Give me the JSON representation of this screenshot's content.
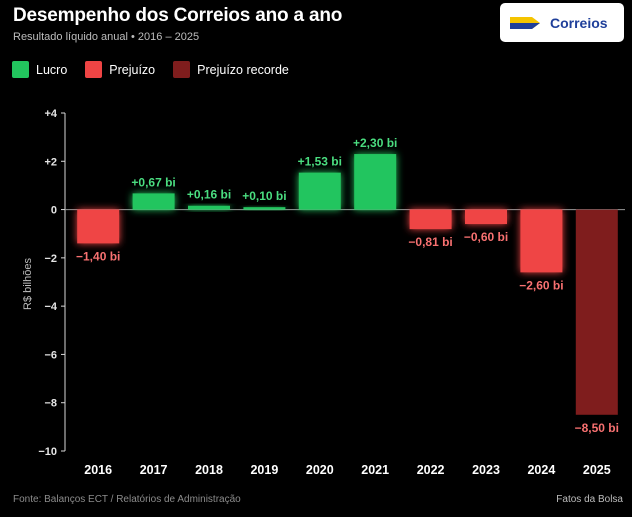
{
  "header": {
    "title": "Desempenho dos Correios ano a ano",
    "subtitle": "Resultado líquido anual • 2016 – 2025"
  },
  "logo": {
    "text": "Correios",
    "icon": "correios-logo-icon",
    "colors": [
      "#f5c400",
      "#1f3f9a"
    ]
  },
  "legend": [
    {
      "label": "Lucro",
      "color": "#22c55e"
    },
    {
      "label": "Prejuízo",
      "color": "#ef4444"
    },
    {
      "label": "Prejuízo recorde",
      "color": "#7f1d1d"
    }
  ],
  "chart_data": {
    "type": "bar",
    "categories": [
      "2016",
      "2017",
      "2018",
      "2019",
      "2020",
      "2021",
      "2022",
      "2023",
      "2024",
      "2025"
    ],
    "values": [
      -1.4,
      0.67,
      0.16,
      0.1,
      1.53,
      2.3,
      -0.81,
      -0.6,
      -2.6,
      -8.5
    ],
    "labels": [
      "−1,40 bi",
      "+0,67 bi",
      "+0,16 bi",
      "+0,10 bi",
      "+1,53 bi",
      "+2,30 bi",
      "−0,81 bi",
      "−0,60 bi",
      "−2,60 bi",
      "−8,50 bi"
    ],
    "kinds": [
      "Prejuízo",
      "Lucro",
      "Lucro",
      "Lucro",
      "Lucro",
      "Lucro",
      "Prejuízo",
      "Prejuízo",
      "Prejuízo",
      "Prejuízo recorde"
    ],
    "ylabel": "R$ bilhões",
    "ylim": [
      -10,
      4
    ],
    "yticks": [
      4,
      2,
      0,
      -2,
      -4,
      -6,
      -8,
      -10
    ],
    "ytick_labels": [
      "+4",
      "+2",
      "0",
      "−2",
      "−4",
      "−6",
      "−8",
      "−10"
    ],
    "grid": false,
    "legend_position": "top-left",
    "colors": {
      "Lucro": "#22c55e",
      "Prejuízo": "#ef4444",
      "Prejuízo recorde": "#7f1d1d",
      "Lucro_label": "#4ade80",
      "Prejuízo_label": "#f87171",
      "Prejuízo recorde_label": "#f87171"
    }
  },
  "footer": {
    "source": "Fonte: Balanços ECT / Relatórios de Administração",
    "brand": "Fatos da Bolsa"
  }
}
